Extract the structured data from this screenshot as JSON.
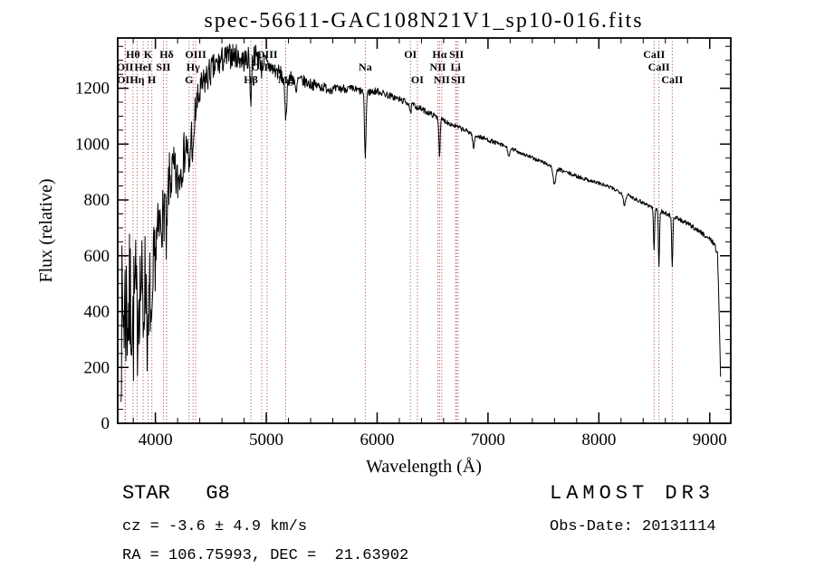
{
  "title": "spec-56611-GAC108N21V1_sp10-016.fits",
  "axes": {
    "xlabel": "Wavelength (Å)",
    "ylabel": "Flux (relative)"
  },
  "annotations": {
    "object_class": "STAR   G8",
    "cz": "cz = -3.6 ± 4.9 km/s",
    "radec": "RA = 106.75993, DEC =  21.63902",
    "survey": "LAMOST DR3",
    "obs_date": "Obs-Date: 20131114"
  },
  "chart_data": {
    "type": "line",
    "title": "spec-56611-GAC108N21V1_sp10-016.fits",
    "xlabel": "Wavelength (Å)",
    "ylabel": "Flux (relative)",
    "xlim": [
      3660,
      9190
    ],
    "ylim": [
      0,
      1380
    ],
    "xticks": [
      4000,
      5000,
      6000,
      7000,
      8000,
      9000
    ],
    "yticks": [
      0,
      200,
      400,
      600,
      800,
      1000,
      1200
    ],
    "x_minor_step": 200,
    "y_minor_step": 50,
    "grid": false,
    "spectrum_color": "#000000",
    "line_marker_color": "#aa3333",
    "wavelength_range": [
      3690,
      9100
    ],
    "sample_step": 4,
    "noise_seed": 7,
    "continuum": [
      [
        3690,
        350
      ],
      [
        3720,
        420
      ],
      [
        3760,
        410
      ],
      [
        3800,
        450
      ],
      [
        3850,
        480
      ],
      [
        3900,
        520
      ],
      [
        3960,
        490
      ],
      [
        4000,
        620
      ],
      [
        4040,
        700
      ],
      [
        4080,
        820
      ],
      [
        4120,
        860
      ],
      [
        4160,
        900
      ],
      [
        4200,
        860
      ],
      [
        4250,
        950
      ],
      [
        4300,
        1030
      ],
      [
        4350,
        1100
      ],
      [
        4400,
        1180
      ],
      [
        4450,
        1230
      ],
      [
        4500,
        1260
      ],
      [
        4550,
        1280
      ],
      [
        4600,
        1300
      ],
      [
        4650,
        1310
      ],
      [
        4700,
        1320
      ],
      [
        4750,
        1310
      ],
      [
        4800,
        1300
      ],
      [
        4860,
        1310
      ],
      [
        4900,
        1320
      ],
      [
        4950,
        1300
      ],
      [
        5000,
        1290
      ],
      [
        5050,
        1270
      ],
      [
        5100,
        1260
      ],
      [
        5150,
        1245
      ],
      [
        5200,
        1240
      ],
      [
        5300,
        1230
      ],
      [
        5400,
        1215
      ],
      [
        5500,
        1205
      ],
      [
        5600,
        1195
      ],
      [
        5700,
        1200
      ],
      [
        5800,
        1195
      ],
      [
        5900,
        1185
      ],
      [
        6000,
        1190
      ],
      [
        6100,
        1175
      ],
      [
        6200,
        1160
      ],
      [
        6300,
        1145
      ],
      [
        6400,
        1125
      ],
      [
        6500,
        1105
      ],
      [
        6600,
        1085
      ],
      [
        6700,
        1065
      ],
      [
        6800,
        1048
      ],
      [
        6900,
        1030
      ],
      [
        7000,
        1015
      ],
      [
        7100,
        1000
      ],
      [
        7200,
        985
      ],
      [
        7300,
        968
      ],
      [
        7400,
        950
      ],
      [
        7500,
        935
      ],
      [
        7600,
        915
      ],
      [
        7700,
        900
      ],
      [
        7800,
        885
      ],
      [
        7900,
        872
      ],
      [
        8000,
        860
      ],
      [
        8100,
        845
      ],
      [
        8200,
        828
      ],
      [
        8300,
        810
      ],
      [
        8400,
        790
      ],
      [
        8500,
        770
      ],
      [
        8600,
        752
      ],
      [
        8700,
        735
      ],
      [
        8800,
        715
      ],
      [
        8900,
        690
      ],
      [
        9000,
        660
      ],
      [
        9040,
        645
      ],
      [
        9070,
        605
      ],
      [
        9085,
        400
      ],
      [
        9100,
        130
      ]
    ],
    "absorption_features": [
      {
        "center": 3798,
        "depth": 120,
        "sigma": 6
      },
      {
        "center": 3835,
        "depth": 120,
        "sigma": 6
      },
      {
        "center": 3889,
        "depth": 140,
        "sigma": 6
      },
      {
        "center": 3933,
        "depth": 260,
        "sigma": 7
      },
      {
        "center": 3968,
        "depth": 260,
        "sigma": 7
      },
      {
        "center": 4072,
        "depth": 80,
        "sigma": 6
      },
      {
        "center": 4101,
        "depth": 220,
        "sigma": 7
      },
      {
        "center": 4304,
        "depth": 140,
        "sigma": 9
      },
      {
        "center": 4340,
        "depth": 150,
        "sigma": 7
      },
      {
        "center": 4861,
        "depth": 170,
        "sigma": 6
      },
      {
        "center": 4959,
        "depth": 30,
        "sigma": 6
      },
      {
        "center": 5175,
        "depth": 140,
        "sigma": 10
      },
      {
        "center": 5269,
        "depth": 60,
        "sigma": 7
      },
      {
        "center": 5893,
        "depth": 230,
        "sigma": 7
      },
      {
        "center": 6300,
        "depth": 40,
        "sigma": 6
      },
      {
        "center": 6563,
        "depth": 130,
        "sigma": 6
      },
      {
        "center": 6870,
        "depth": 50,
        "sigma": 8
      },
      {
        "center": 7190,
        "depth": 30,
        "sigma": 10
      },
      {
        "center": 7600,
        "depth": 60,
        "sigma": 12
      },
      {
        "center": 8230,
        "depth": 40,
        "sigma": 10
      },
      {
        "center": 8498,
        "depth": 150,
        "sigma": 5
      },
      {
        "center": 8542,
        "depth": 200,
        "sigma": 5
      },
      {
        "center": 8662,
        "depth": 185,
        "sigma": 5
      }
    ],
    "noise_profile": [
      [
        3690,
        280
      ],
      [
        3760,
        280
      ],
      [
        3820,
        220
      ],
      [
        3900,
        190
      ],
      [
        3960,
        160
      ],
      [
        4020,
        130
      ],
      [
        4100,
        110
      ],
      [
        4200,
        90
      ],
      [
        4300,
        75
      ],
      [
        4400,
        65
      ],
      [
        4500,
        55
      ],
      [
        4700,
        45
      ],
      [
        4900,
        40
      ],
      [
        5100,
        30
      ],
      [
        5300,
        22
      ],
      [
        5600,
        17
      ],
      [
        6000,
        13
      ],
      [
        6500,
        10
      ],
      [
        7000,
        8
      ],
      [
        7500,
        7
      ],
      [
        8000,
        7
      ],
      [
        8600,
        8
      ],
      [
        9000,
        9
      ],
      [
        9100,
        12
      ]
    ],
    "spectral_lines": [
      {
        "label": "Hθ",
        "wavelength": 3798,
        "row": 1
      },
      {
        "label": "K",
        "wavelength": 3933,
        "row": 1
      },
      {
        "label": "Hδ",
        "wavelength": 4101,
        "row": 1
      },
      {
        "label": "OIII",
        "wavelength": 4363,
        "row": 1
      },
      {
        "label": "OIII",
        "wavelength": 5007,
        "row": 1
      },
      {
        "label": "OI",
        "wavelength": 6300,
        "row": 1
      },
      {
        "label": "Hα",
        "wavelength": 6563,
        "row": 1
      },
      {
        "label": "SII",
        "wavelength": 6716,
        "row": 1
      },
      {
        "label": "CaII",
        "wavelength": 8498,
        "row": 1
      },
      {
        "label": "OII",
        "wavelength": 3726,
        "row": 2
      },
      {
        "label": "HeI",
        "wavelength": 3889,
        "row": 2
      },
      {
        "label": "SII",
        "wavelength": 4072,
        "row": 2
      },
      {
        "label": "Hγ",
        "wavelength": 4340,
        "row": 2
      },
      {
        "label": "OIII",
        "wavelength": 4959,
        "row": 2
      },
      {
        "label": "Na",
        "wavelength": 5893,
        "row": 2
      },
      {
        "label": "NII",
        "wavelength": 6548,
        "row": 2
      },
      {
        "label": "Li",
        "wavelength": 6708,
        "row": 2
      },
      {
        "label": "CaII",
        "wavelength": 8542,
        "row": 2
      },
      {
        "label": "OII",
        "wavelength": 3729,
        "row": 3
      },
      {
        "label": "Hη",
        "wavelength": 3835,
        "row": 3
      },
      {
        "label": "H",
        "wavelength": 3968,
        "row": 3
      },
      {
        "label": "G",
        "wavelength": 4304,
        "row": 3
      },
      {
        "label": "Hβ",
        "wavelength": 4861,
        "row": 3
      },
      {
        "label": "Mg",
        "wavelength": 5175,
        "row": 3
      },
      {
        "label": "OI",
        "wavelength": 6363,
        "row": 3
      },
      {
        "label": "NII",
        "wavelength": 6583,
        "row": 3
      },
      {
        "label": "SII",
        "wavelength": 6731,
        "row": 3
      },
      {
        "label": "CaII",
        "wavelength": 8662,
        "row": 3
      }
    ]
  }
}
